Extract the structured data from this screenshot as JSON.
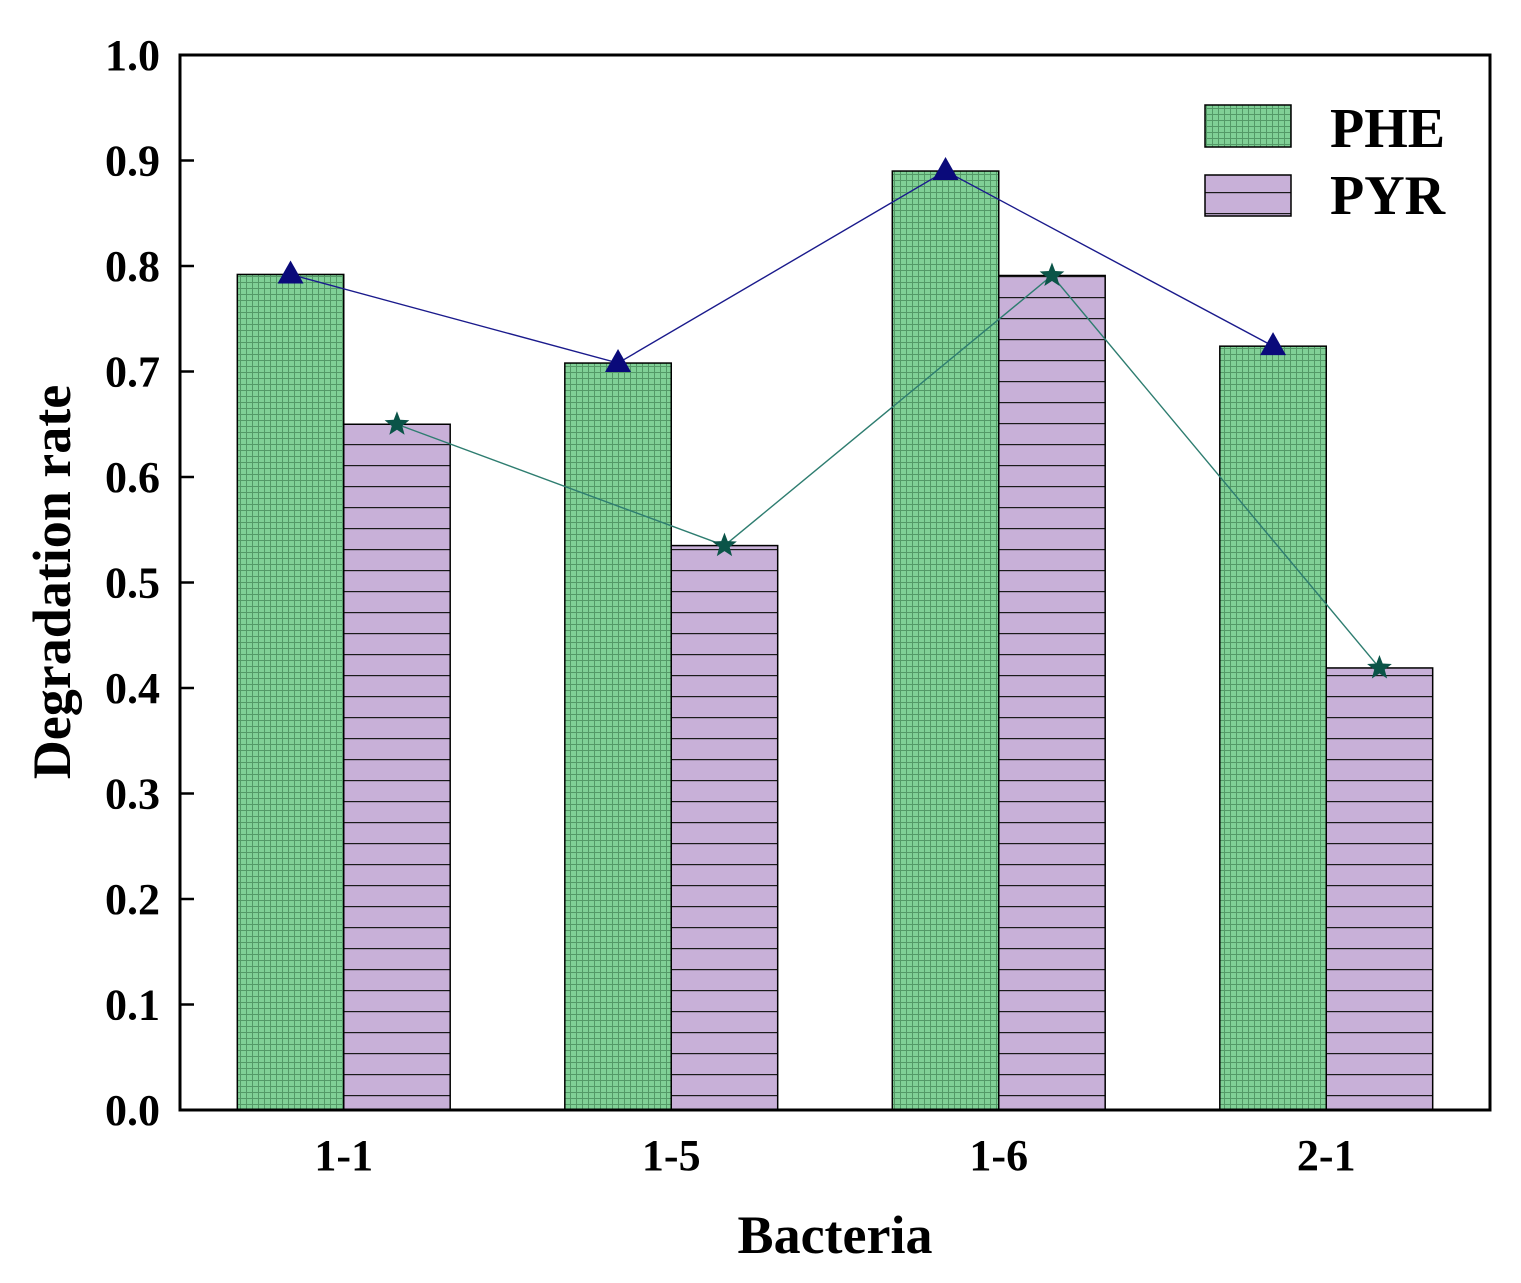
{
  "chart_data": {
    "type": "bar",
    "categories": [
      "1-1",
      "1-5",
      "1-6",
      "2-1"
    ],
    "series": [
      {
        "name": "PHE",
        "values": [
          0.792,
          0.708,
          0.89,
          0.724
        ],
        "color": "#80d096",
        "line_color": "#1a1a8c",
        "marker": "triangle",
        "marker_color": "#0a0a7a"
      },
      {
        "name": "PYR",
        "values": [
          0.65,
          0.535,
          0.791,
          0.419
        ],
        "color": "#c8b0d8",
        "line_color": "#2e7d70",
        "marker": "star",
        "marker_color": "#0b5448"
      }
    ],
    "xlabel": "Bacteria",
    "ylabel": "Degradation rate",
    "ylim": [
      0.0,
      1.0
    ],
    "yticks": [
      0.0,
      0.1,
      0.2,
      0.3,
      0.4,
      0.5,
      0.6,
      0.7,
      0.8,
      0.9,
      1.0
    ],
    "legend_position": "top-right",
    "grid": false
  }
}
